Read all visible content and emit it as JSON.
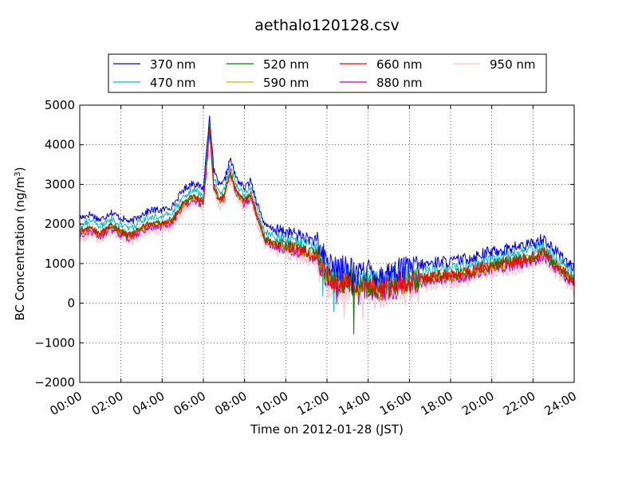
{
  "chart_data": {
    "type": "line",
    "title": "aethalo120128.csv",
    "xlabel": "Time on 2012-01-28 (JST)",
    "ylabel_prefix": "BC Concentration (ng/m",
    "ylabel_sup": "3",
    "ylabel_suffix": ")",
    "xlim": [
      0,
      24
    ],
    "ylim": [
      -2000,
      5000
    ],
    "x_ticks": [
      0,
      2,
      4,
      6,
      8,
      10,
      12,
      14,
      16,
      18,
      20,
      22,
      24
    ],
    "x_tick_labels": [
      "00:00",
      "02:00",
      "04:00",
      "06:00",
      "08:00",
      "10:00",
      "12:00",
      "14:00",
      "16:00",
      "18:00",
      "20:00",
      "22:00",
      "24:00"
    ],
    "y_ticks": [
      -2000,
      -1000,
      0,
      1000,
      2000,
      3000,
      4000,
      5000
    ],
    "y_tick_labels": [
      "−2000",
      "−1000",
      "0",
      "1000",
      "2000",
      "3000",
      "4000",
      "5000"
    ],
    "grid": true,
    "legend_placement": "above plot, 4 columns",
    "base_profile": {
      "x": [
        0,
        0.5,
        1,
        1.5,
        2,
        2.5,
        3,
        3.5,
        4,
        4.5,
        5,
        5.5,
        5.8,
        6,
        6.3,
        6.5,
        6.8,
        7,
        7.3,
        7.6,
        8,
        8.3,
        8.6,
        9,
        9.5,
        10,
        10.5,
        11,
        11.5,
        12,
        12.5,
        13,
        13.5,
        14,
        14.5,
        15,
        15.5,
        16,
        16.5,
        17,
        17.5,
        18,
        18.5,
        19,
        19.5,
        20,
        20.5,
        21,
        21.5,
        22,
        22.5,
        23,
        23.5,
        24
      ],
      "y": [
        1800,
        1900,
        1750,
        1950,
        1800,
        1700,
        1900,
        2000,
        2000,
        2100,
        2500,
        2700,
        2600,
        2550,
        4400,
        3000,
        2600,
        2700,
        3300,
        2800,
        2550,
        2750,
        2200,
        1600,
        1500,
        1450,
        1400,
        1300,
        1200,
        700,
        500,
        600,
        400,
        500,
        350,
        450,
        500,
        550,
        600,
        650,
        700,
        700,
        750,
        800,
        900,
        950,
        1000,
        1050,
        1100,
        1150,
        1300,
        1000,
        800,
        500
      ]
    },
    "series": [
      {
        "name": "370 nm",
        "color": "#0000ff",
        "offset": 350
      },
      {
        "name": "470 nm",
        "color": "#00bfbf",
        "offset": 180
      },
      {
        "name": "520 nm",
        "color": "#008000",
        "offset": 20
      },
      {
        "name": "590 nm",
        "color": "#bfbf00",
        "offset": -20
      },
      {
        "name": "660 nm",
        "color": "#ff0000",
        "offset": 0
      },
      {
        "name": "880 nm",
        "color": "#bf00bf",
        "offset": -80
      },
      {
        "name": "950 nm",
        "color": "#ffc0cb",
        "offset": -150
      }
    ]
  }
}
